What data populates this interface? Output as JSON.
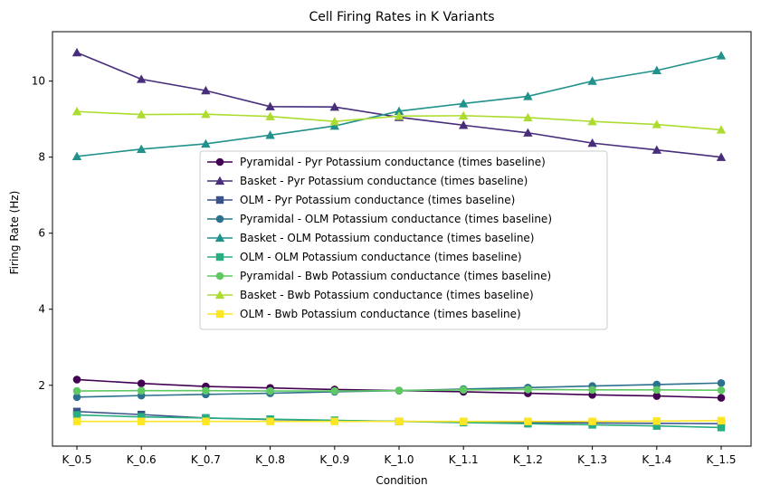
{
  "chart_data": {
    "type": "line",
    "title": "Cell Firing Rates in K Variants",
    "xlabel": "Condition",
    "ylabel": "Firing Rate (Hz)",
    "categories": [
      "K_0.5",
      "K_0.6",
      "K_0.7",
      "K_0.8",
      "K_0.9",
      "K_1.0",
      "K_1.1",
      "K_1.2",
      "K_1.3",
      "K_1.4",
      "K_1.5"
    ],
    "ylim": [
      0.4,
      11.3
    ],
    "yticks": [
      2,
      4,
      6,
      8,
      10
    ],
    "grid": false,
    "legend_position": "center",
    "series": [
      {
        "name": "Pyramidal - Pyr Potassium conductance (times baseline)",
        "color": "#440154",
        "marker": "circle",
        "values": [
          2.15,
          2.05,
          1.97,
          1.93,
          1.89,
          1.86,
          1.83,
          1.79,
          1.75,
          1.72,
          1.67
        ]
      },
      {
        "name": "Basket - Pyr Potassium conductance (times baseline)",
        "color": "#472d7b",
        "marker": "triangle",
        "values": [
          10.75,
          10.05,
          9.75,
          9.33,
          9.32,
          9.05,
          8.84,
          8.64,
          8.37,
          8.19,
          8.0
        ]
      },
      {
        "name": "OLM - Pyr Potassium conductance (times baseline)",
        "color": "#3b528b",
        "marker": "square",
        "values": [
          1.31,
          1.23,
          1.14,
          1.1,
          1.07,
          1.05,
          1.04,
          1.02,
          1.01,
          1.0,
          0.99
        ]
      },
      {
        "name": "Pyramidal - OLM Potassium conductance (times baseline)",
        "color": "#2c728e",
        "marker": "circle",
        "values": [
          1.69,
          1.73,
          1.76,
          1.79,
          1.83,
          1.86,
          1.9,
          1.94,
          1.98,
          2.02,
          2.06
        ]
      },
      {
        "name": "Basket - OLM Potassium conductance (times baseline)",
        "color": "#21918c",
        "marker": "triangle",
        "values": [
          8.02,
          8.21,
          8.35,
          8.58,
          8.82,
          9.21,
          9.41,
          9.6,
          10.0,
          10.28,
          10.67
        ]
      },
      {
        "name": "OLM - OLM Potassium conductance (times baseline)",
        "color": "#28ae80",
        "marker": "square",
        "values": [
          1.22,
          1.17,
          1.14,
          1.11,
          1.08,
          1.05,
          1.02,
          0.99,
          0.96,
          0.93,
          0.89
        ]
      },
      {
        "name": "Pyramidal - Bwb Potassium conductance (times baseline)",
        "color": "#5ec962",
        "marker": "circle",
        "values": [
          1.85,
          1.86,
          1.86,
          1.85,
          1.85,
          1.86,
          1.88,
          1.89,
          1.88,
          1.88,
          1.87
        ]
      },
      {
        "name": "Basket - Bwb Potassium conductance (times baseline)",
        "color": "#addc30",
        "marker": "triangle",
        "values": [
          9.2,
          9.12,
          9.13,
          9.07,
          8.94,
          9.08,
          9.09,
          9.04,
          8.94,
          8.86,
          8.72
        ]
      },
      {
        "name": "OLM - Bwb Potassium conductance (times baseline)",
        "color": "#fde725",
        "marker": "square",
        "values": [
          1.05,
          1.05,
          1.05,
          1.05,
          1.05,
          1.05,
          1.05,
          1.05,
          1.05,
          1.06,
          1.07
        ]
      }
    ]
  }
}
